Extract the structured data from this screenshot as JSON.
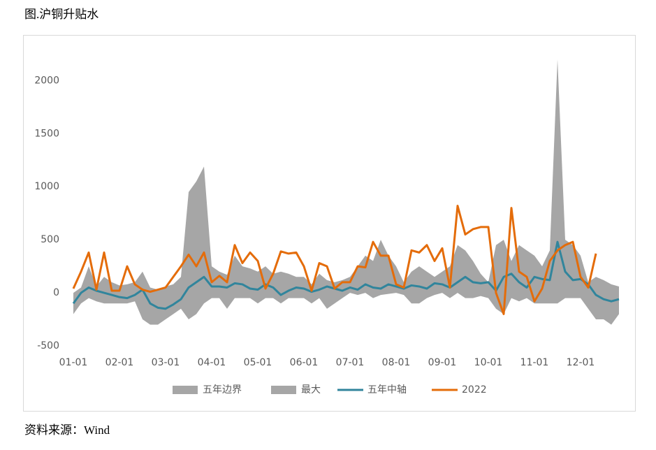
{
  "title": "图.沪铜升贴水",
  "source": "资料来源：Wind",
  "chart_data": {
    "type": "line",
    "categories": [
      "01-01",
      null,
      null,
      null,
      null,
      null,
      "02-01",
      null,
      null,
      null,
      null,
      null,
      "03-01",
      null,
      null,
      null,
      null,
      null,
      "04-01",
      null,
      null,
      null,
      null,
      null,
      "05-01",
      null,
      null,
      null,
      null,
      null,
      "06-01",
      null,
      null,
      null,
      null,
      null,
      "07-01",
      null,
      null,
      null,
      null,
      null,
      "08-01",
      null,
      null,
      null,
      null,
      null,
      "09-01",
      null,
      null,
      null,
      null,
      null,
      "10-01",
      null,
      null,
      null,
      null,
      null,
      "11-01",
      null,
      null,
      null,
      null,
      null,
      "12-01",
      null,
      null,
      null,
      null,
      null
    ],
    "series": [
      {
        "name": "五年边界",
        "style": "area",
        "color": "#a6a6a6",
        "values": [
          -200,
          -100,
          -50,
          -80,
          -100,
          -100,
          -100,
          -100,
          -80,
          -250,
          -300,
          -300,
          -250,
          -200,
          -150,
          -250,
          -200,
          -100,
          -50,
          -50,
          -150,
          -50,
          -50,
          -50,
          -100,
          -50,
          -50,
          -100,
          -50,
          -50,
          -50,
          -100,
          -50,
          -150,
          -100,
          -50,
          0,
          -20,
          0,
          -50,
          -20,
          -10,
          0,
          -20,
          -100,
          -100,
          -50,
          -20,
          0,
          -50,
          0,
          -50,
          -50,
          -30,
          -50,
          -150,
          -200,
          -50,
          -80,
          -50,
          -100,
          -100,
          -100,
          -100,
          -50,
          -50,
          -50,
          -150,
          -250,
          -250,
          -300,
          -200
        ]
      },
      {
        "name": "最大",
        "style": "area",
        "color": "#a6a6a6",
        "values": [
          0,
          50,
          250,
          60,
          150,
          100,
          70,
          80,
          100,
          200,
          50,
          30,
          60,
          80,
          150,
          950,
          1050,
          1190,
          250,
          200,
          170,
          350,
          250,
          230,
          200,
          250,
          180,
          200,
          180,
          150,
          150,
          80,
          180,
          120,
          100,
          120,
          150,
          250,
          350,
          300,
          500,
          350,
          250,
          100,
          200,
          250,
          200,
          150,
          200,
          250,
          450,
          400,
          300,
          180,
          100,
          450,
          500,
          300,
          450,
          400,
          350,
          250,
          400,
          2200,
          500,
          450,
          350,
          100,
          150,
          120,
          80,
          60
        ]
      },
      {
        "name": "五年中轴",
        "style": "line",
        "color": "#31859c",
        "values": [
          -100,
          0,
          50,
          20,
          0,
          -20,
          -40,
          -50,
          -20,
          30,
          -100,
          -140,
          -150,
          -110,
          -60,
          50,
          100,
          150,
          60,
          60,
          50,
          90,
          80,
          40,
          30,
          80,
          50,
          -20,
          20,
          50,
          40,
          10,
          30,
          60,
          40,
          20,
          50,
          30,
          80,
          50,
          40,
          80,
          60,
          40,
          70,
          60,
          40,
          90,
          80,
          50,
          100,
          150,
          100,
          90,
          100,
          20,
          150,
          180,
          100,
          50,
          150,
          130,
          120,
          480,
          200,
          120,
          130,
          80,
          -20,
          -60,
          -80,
          -60
        ]
      },
      {
        "name": "2022",
        "style": "line",
        "color": "#e46c0a",
        "values": [
          40,
          200,
          380,
          30,
          380,
          20,
          20,
          250,
          80,
          30,
          10,
          30,
          50,
          150,
          250,
          360,
          250,
          380,
          100,
          160,
          100,
          450,
          280,
          380,
          300,
          40,
          180,
          390,
          370,
          380,
          250,
          20,
          280,
          250,
          40,
          100,
          100,
          250,
          240,
          480,
          350,
          350,
          80,
          50,
          400,
          380,
          450,
          300,
          420,
          50,
          820,
          550,
          600,
          620,
          620,
          0,
          -200,
          800,
          200,
          150,
          -80,
          40,
          300,
          400,
          450,
          480,
          150,
          50,
          370,
          null,
          null,
          null
        ]
      }
    ],
    "ylim": [
      -500,
      2200
    ],
    "yticks": [
      -500,
      0,
      500,
      1000,
      1500,
      2000
    ],
    "grid": false
  }
}
